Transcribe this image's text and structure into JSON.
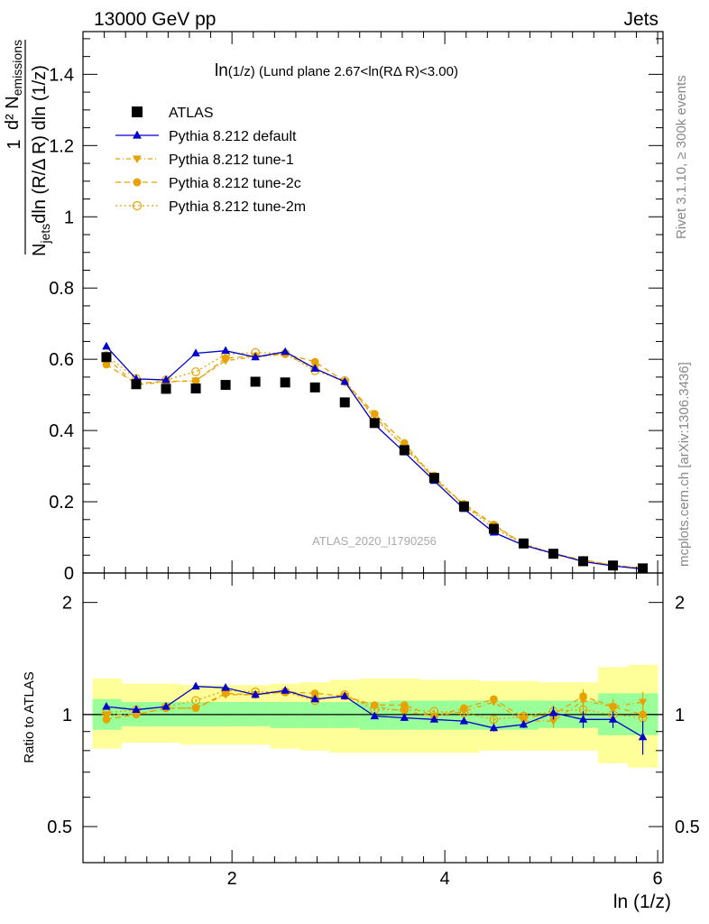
{
  "header": {
    "left": "13000 GeV pp",
    "right": "Jets"
  },
  "side": {
    "rivet": "Rivet 3.1.10, ≥ 300k events",
    "mcplots": "mcplots.cern.ch [arXiv:1306.3436]"
  },
  "watermark": "ATLAS_2020_I1790256",
  "chart_data": [
    {
      "type": "scatter",
      "title": "ln(1/z) (Lund plane 2.67<ln(RΔ R)<3.00)",
      "title_main": "ln",
      "title_sub": "(1/z) (Lund plane 2.67<ln(RΔ R)<3.00)",
      "ylabel_num": "d² N",
      "ylabel_num_sub": "emissions",
      "ylabel_den_pre": "N",
      "ylabel_den_sub": "jets",
      "ylabel_den_post": "dln (R/Δ R) dln (1/z)",
      "ylabel_one": "1",
      "xlim": [
        0.6,
        6.05
      ],
      "ylim": [
        0,
        1.52
      ],
      "yticks": [
        0,
        0.2,
        0.4,
        0.6,
        0.8,
        1,
        1.2,
        1.4
      ],
      "ytick_labels": [
        "0",
        "0.2",
        "0.4",
        "0.6",
        "0.8",
        "1",
        "1.2",
        "1.4"
      ],
      "x": [
        0.82,
        1.1,
        1.38,
        1.66,
        1.94,
        2.22,
        2.5,
        2.78,
        3.06,
        3.34,
        3.62,
        3.9,
        4.18,
        4.46,
        4.74,
        5.02,
        5.3,
        5.58,
        5.86
      ],
      "series": [
        {
          "name": "ATLAS",
          "color": "#000000",
          "marker": "square",
          "values": [
            0.606,
            0.53,
            0.517,
            0.518,
            0.528,
            0.537,
            0.535,
            0.521,
            0.479,
            0.421,
            0.345,
            0.267,
            0.187,
            0.124,
            0.083,
            0.054,
            0.033,
            0.021,
            0.013
          ]
        },
        {
          "name": "Pythia 8.212 default",
          "color": "#0000cc",
          "marker": "triangle-up",
          "dash": "",
          "values": [
            0.636,
            0.545,
            0.542,
            0.617,
            0.624,
            0.606,
            0.621,
            0.574,
            0.537,
            0.417,
            0.339,
            0.259,
            0.18,
            0.114,
            0.078,
            0.055,
            0.032,
            0.02,
            0.011
          ]
        },
        {
          "name": "Pythia 8.212 tune-1",
          "color": "#e8a200",
          "marker": "triangle-down",
          "dash": "5,3,1,3",
          "values": [
            0.605,
            0.528,
            0.536,
            0.54,
            0.596,
            0.607,
            0.614,
            0.575,
            0.535,
            0.44,
            0.353,
            0.265,
            0.191,
            0.134,
            0.08,
            0.052,
            0.036,
            0.022,
            0.014
          ]
        },
        {
          "name": "Pythia 8.212 tune-2c",
          "color": "#e8a200",
          "marker": "circle",
          "dash": "6,4",
          "values": [
            0.585,
            0.532,
            0.538,
            0.539,
            0.603,
            0.609,
            0.615,
            0.593,
            0.537,
            0.447,
            0.365,
            0.264,
            0.194,
            0.136,
            0.081,
            0.054,
            0.037,
            0.022,
            0.013
          ]
        },
        {
          "name": "Pythia 8.212 tune-2m",
          "color": "#e8a200",
          "marker": "circle-open",
          "dash": "2,3",
          "values": [
            0.61,
            0.546,
            0.542,
            0.565,
            0.614,
            0.619,
            0.616,
            0.568,
            0.54,
            0.434,
            0.356,
            0.272,
            0.189,
            0.125,
            0.082,
            0.055,
            0.034,
            0.021,
            0.013
          ]
        }
      ],
      "legend_position": "top-left"
    },
    {
      "type": "scatter",
      "ylabel": "Ratio to ATLAS",
      "xlabel": "ln (1/z)",
      "xlim": [
        0.6,
        6.05
      ],
      "ylim": [
        0.4,
        2.4
      ],
      "log_y": true,
      "xticks": [
        2,
        4,
        6
      ],
      "xtick_labels": [
        "2",
        "4",
        "6"
      ],
      "yticks": [
        0.5,
        1,
        2
      ],
      "ytick_labels": [
        "0.5",
        "1",
        "2"
      ],
      "x": [
        0.82,
        1.1,
        1.38,
        1.66,
        1.94,
        2.22,
        2.5,
        2.78,
        3.06,
        3.34,
        3.62,
        3.9,
        4.18,
        4.46,
        4.74,
        5.02,
        5.3,
        5.58,
        5.86
      ],
      "bin_edges": [
        0.69,
        0.96,
        1.24,
        1.52,
        1.8,
        2.08,
        2.36,
        2.64,
        2.92,
        3.2,
        3.48,
        3.76,
        4.04,
        4.32,
        4.6,
        4.88,
        5.16,
        5.44,
        5.72,
        6.0
      ],
      "band_inner": {
        "color": "#99ff99",
        "low": [
          0.91,
          0.93,
          0.93,
          0.93,
          0.93,
          0.93,
          0.92,
          0.92,
          0.92,
          0.91,
          0.91,
          0.91,
          0.91,
          0.91,
          0.91,
          0.92,
          0.92,
          0.88,
          0.88
        ],
        "high": [
          1.1,
          1.08,
          1.08,
          1.08,
          1.08,
          1.08,
          1.08,
          1.08,
          1.08,
          1.08,
          1.09,
          1.09,
          1.09,
          1.09,
          1.09,
          1.09,
          1.09,
          1.14,
          1.14
        ]
      },
      "band_outer": {
        "color": "#ffff99",
        "low": [
          0.81,
          0.84,
          0.84,
          0.83,
          0.83,
          0.83,
          0.81,
          0.8,
          0.79,
          0.79,
          0.79,
          0.79,
          0.79,
          0.8,
          0.8,
          0.8,
          0.8,
          0.74,
          0.72
        ],
        "high": [
          1.25,
          1.21,
          1.21,
          1.2,
          1.2,
          1.2,
          1.21,
          1.22,
          1.24,
          1.25,
          1.25,
          1.24,
          1.24,
          1.23,
          1.23,
          1.22,
          1.22,
          1.34,
          1.36
        ]
      },
      "series": [
        {
          "name": "Pythia 8.212 default",
          "values": [
            1.05,
            1.03,
            1.05,
            1.19,
            1.18,
            1.13,
            1.16,
            1.1,
            1.12,
            0.99,
            0.98,
            0.97,
            0.96,
            0.92,
            0.94,
            1.01,
            0.97,
            0.97,
            0.87
          ],
          "errors": [
            0.02,
            0.01,
            0.01,
            0.01,
            0.01,
            0.01,
            0.01,
            0.01,
            0.01,
            0.01,
            0.01,
            0.01,
            0.01,
            0.02,
            0.02,
            0.04,
            0.05,
            0.05,
            0.09
          ]
        },
        {
          "name": "Pythia 8.212 tune-1",
          "values": [
            1.0,
            1.0,
            1.04,
            1.04,
            1.13,
            1.13,
            1.15,
            1.1,
            1.12,
            1.05,
            1.02,
            0.99,
            1.02,
            1.08,
            0.96,
            0.96,
            1.09,
            1.05,
            1.08
          ],
          "errors": [
            0.01,
            0.01,
            0.01,
            0.01,
            0.01,
            0.01,
            0.01,
            0.01,
            0.01,
            0.01,
            0.01,
            0.01,
            0.01,
            0.02,
            0.03,
            0.04,
            0.04,
            0.05,
            0.07
          ]
        },
        {
          "name": "Pythia 8.212 tune-2c",
          "values": [
            0.97,
            1.0,
            1.04,
            1.04,
            1.14,
            1.13,
            1.15,
            1.14,
            1.12,
            1.06,
            1.06,
            0.99,
            1.04,
            1.1,
            0.98,
            1.0,
            1.12,
            1.05,
            1.0
          ],
          "errors": [
            0.01,
            0.01,
            0.01,
            0.01,
            0.01,
            0.01,
            0.01,
            0.01,
            0.01,
            0.01,
            0.01,
            0.01,
            0.02,
            0.02,
            0.03,
            0.04,
            0.05,
            0.05,
            0.07
          ]
        },
        {
          "name": "Pythia 8.212 tune-2m",
          "values": [
            1.01,
            1.03,
            1.05,
            1.09,
            1.16,
            1.15,
            1.15,
            1.09,
            1.13,
            1.03,
            1.03,
            1.02,
            1.01,
            0.97,
            0.99,
            1.02,
            1.03,
            1.0,
            0.98
          ],
          "errors": [
            0.01,
            0.01,
            0.01,
            0.01,
            0.01,
            0.01,
            0.01,
            0.01,
            0.01,
            0.01,
            0.01,
            0.01,
            0.01,
            0.02,
            0.03,
            0.04,
            0.04,
            0.05,
            0.07
          ]
        }
      ]
    }
  ]
}
